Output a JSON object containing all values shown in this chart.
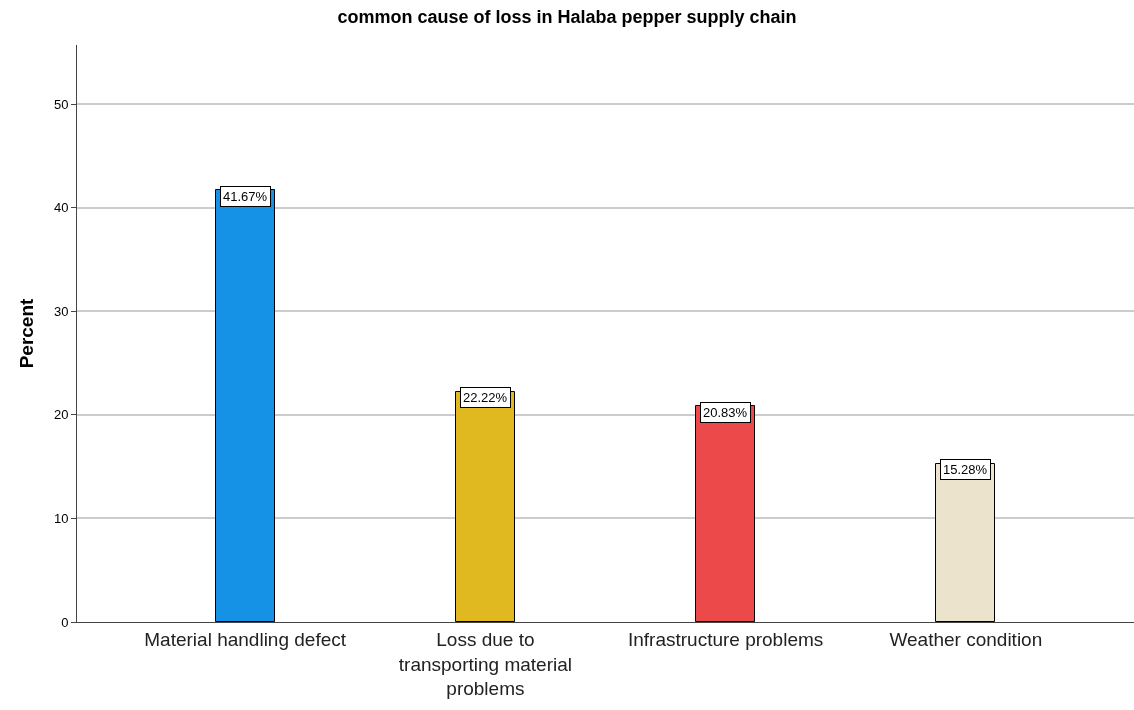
{
  "chart_data": {
    "type": "bar",
    "title": "common cause of loss in Halaba pepper supply chain",
    "ylabel": "Percent",
    "categories": [
      "Material handling defect",
      "Loss due to transporting material problems",
      "Infrastructure problems",
      "Weather condition"
    ],
    "values": [
      41.67,
      22.22,
      20.83,
      15.28
    ],
    "colors": [
      "#1591e6",
      "#e0b820",
      "#ec4a4a",
      "#ebe3cc"
    ],
    "value_labels": [
      "41.67%",
      "22.22%",
      "20.83%",
      "15.28%"
    ],
    "ylim": [
      0,
      55.7
    ],
    "yticks": [
      0,
      10,
      20,
      30,
      40,
      50
    ],
    "grid": "y",
    "legend": false
  }
}
